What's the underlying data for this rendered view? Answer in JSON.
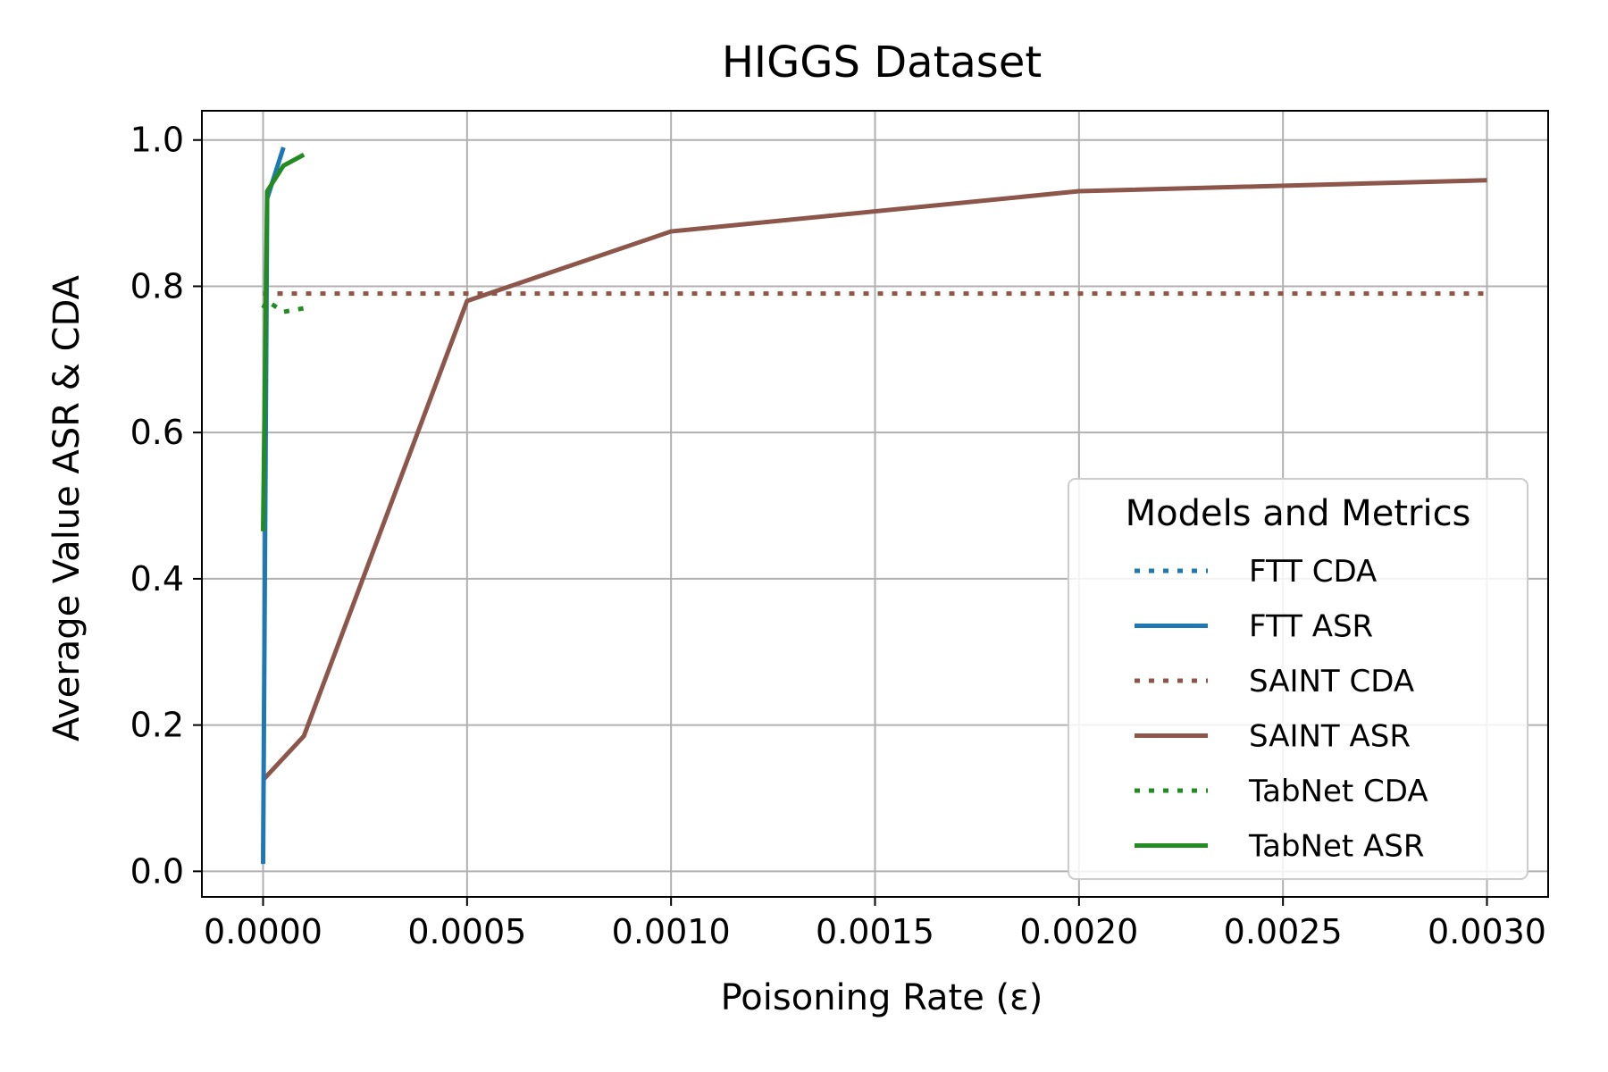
{
  "chart_data": {
    "type": "line",
    "title": "HIGGS Dataset",
    "xlabel": "Poisoning Rate (ε)",
    "ylabel": "Average Value ASR & CDA",
    "xlim": [
      -0.00015,
      0.00315
    ],
    "ylim": [
      -0.035,
      1.04
    ],
    "xticks": [
      0.0,
      0.0005,
      0.001,
      0.0015,
      0.002,
      0.0025,
      0.003
    ],
    "xtick_labels": [
      "0.0000",
      "0.0005",
      "0.0010",
      "0.0015",
      "0.0020",
      "0.0025",
      "0.0030"
    ],
    "yticks": [
      0.0,
      0.2,
      0.4,
      0.6,
      0.8,
      1.0
    ],
    "ytick_labels": [
      "0.0",
      "0.2",
      "0.4",
      "0.6",
      "0.8",
      "1.0"
    ],
    "grid": true,
    "legend": {
      "title": "Models and Metrics",
      "placement": "lower right"
    },
    "series": [
      {
        "name": "FTT CDA",
        "color": "#1f77b4",
        "style": "dotted",
        "x": [
          0.0,
          1e-05,
          5e-05
        ],
        "y": [
          0.79,
          0.79,
          0.79
        ]
      },
      {
        "name": "FTT ASR",
        "color": "#1f77b4",
        "style": "solid",
        "x": [
          0.0,
          1e-05,
          5e-05
        ],
        "y": [
          0.01,
          0.92,
          0.99
        ]
      },
      {
        "name": "SAINT CDA",
        "color": "#8c564b",
        "style": "dotted",
        "x": [
          0.0,
          0.0001,
          0.0005,
          0.001,
          0.002,
          0.003
        ],
        "y": [
          0.79,
          0.79,
          0.79,
          0.79,
          0.79,
          0.79
        ]
      },
      {
        "name": "SAINT ASR",
        "color": "#8c564b",
        "style": "solid",
        "x": [
          0.0,
          0.0001,
          0.0005,
          0.001,
          0.002,
          0.003
        ],
        "y": [
          0.125,
          0.185,
          0.78,
          0.875,
          0.93,
          0.945
        ]
      },
      {
        "name": "TabNet CDA",
        "color": "#228b22",
        "style": "dotted",
        "x": [
          0.0,
          1e-05,
          5e-05,
          0.0001
        ],
        "y": [
          0.77,
          0.78,
          0.765,
          0.77
        ]
      },
      {
        "name": "TabNet ASR",
        "color": "#228b22",
        "style": "solid",
        "x": [
          0.0,
          1e-05,
          5e-05,
          0.0001
        ],
        "y": [
          0.465,
          0.93,
          0.965,
          0.98
        ]
      }
    ]
  }
}
